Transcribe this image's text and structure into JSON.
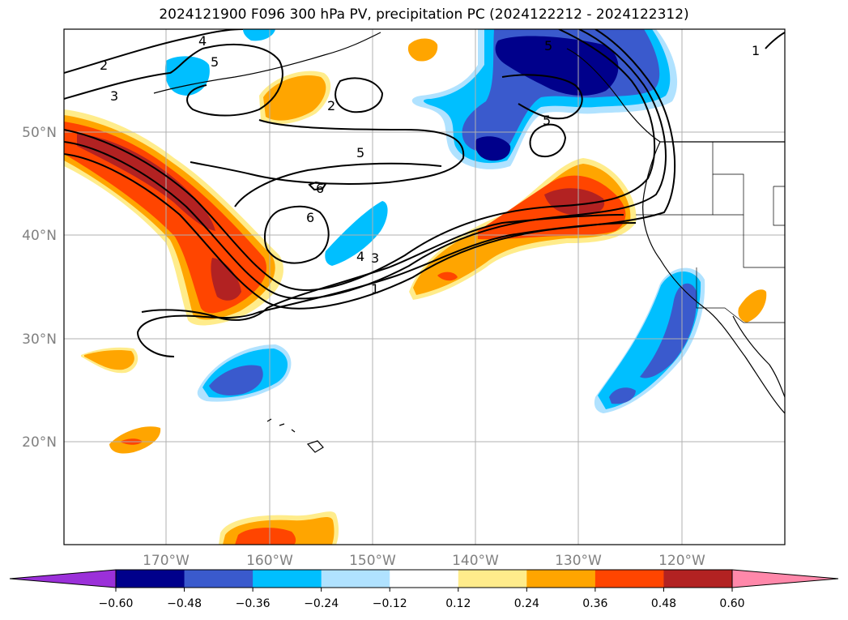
{
  "title": "2024121900 F096 300 hPa PV, precipitation PC (2024122212 - 2024122312)",
  "lon_labels": [
    "170°W",
    "160°W",
    "150°W",
    "140°W",
    "130°W",
    "120°W"
  ],
  "lat_labels": [
    "50°N",
    "40°N",
    "30°N",
    "20°N"
  ],
  "colorbar": {
    "ticks": [
      "−0.60",
      "−0.48",
      "−0.36",
      "−0.24",
      "−0.12",
      "0.12",
      "0.24",
      "0.36",
      "0.48",
      "0.60"
    ],
    "colors": [
      "#9b30d9",
      "#00008b",
      "#3a5acd",
      "#00bfff",
      "#b0e2ff",
      "#ffffff",
      "#ffec8b",
      "#ffa500",
      "#ff4500",
      "#b22222",
      "#ff88aa"
    ]
  },
  "contour_labels": [
    "4",
    "5",
    "2",
    "3",
    "2",
    "5",
    "5",
    "6",
    "6",
    "4",
    "3",
    "1",
    "1",
    "5"
  ]
}
